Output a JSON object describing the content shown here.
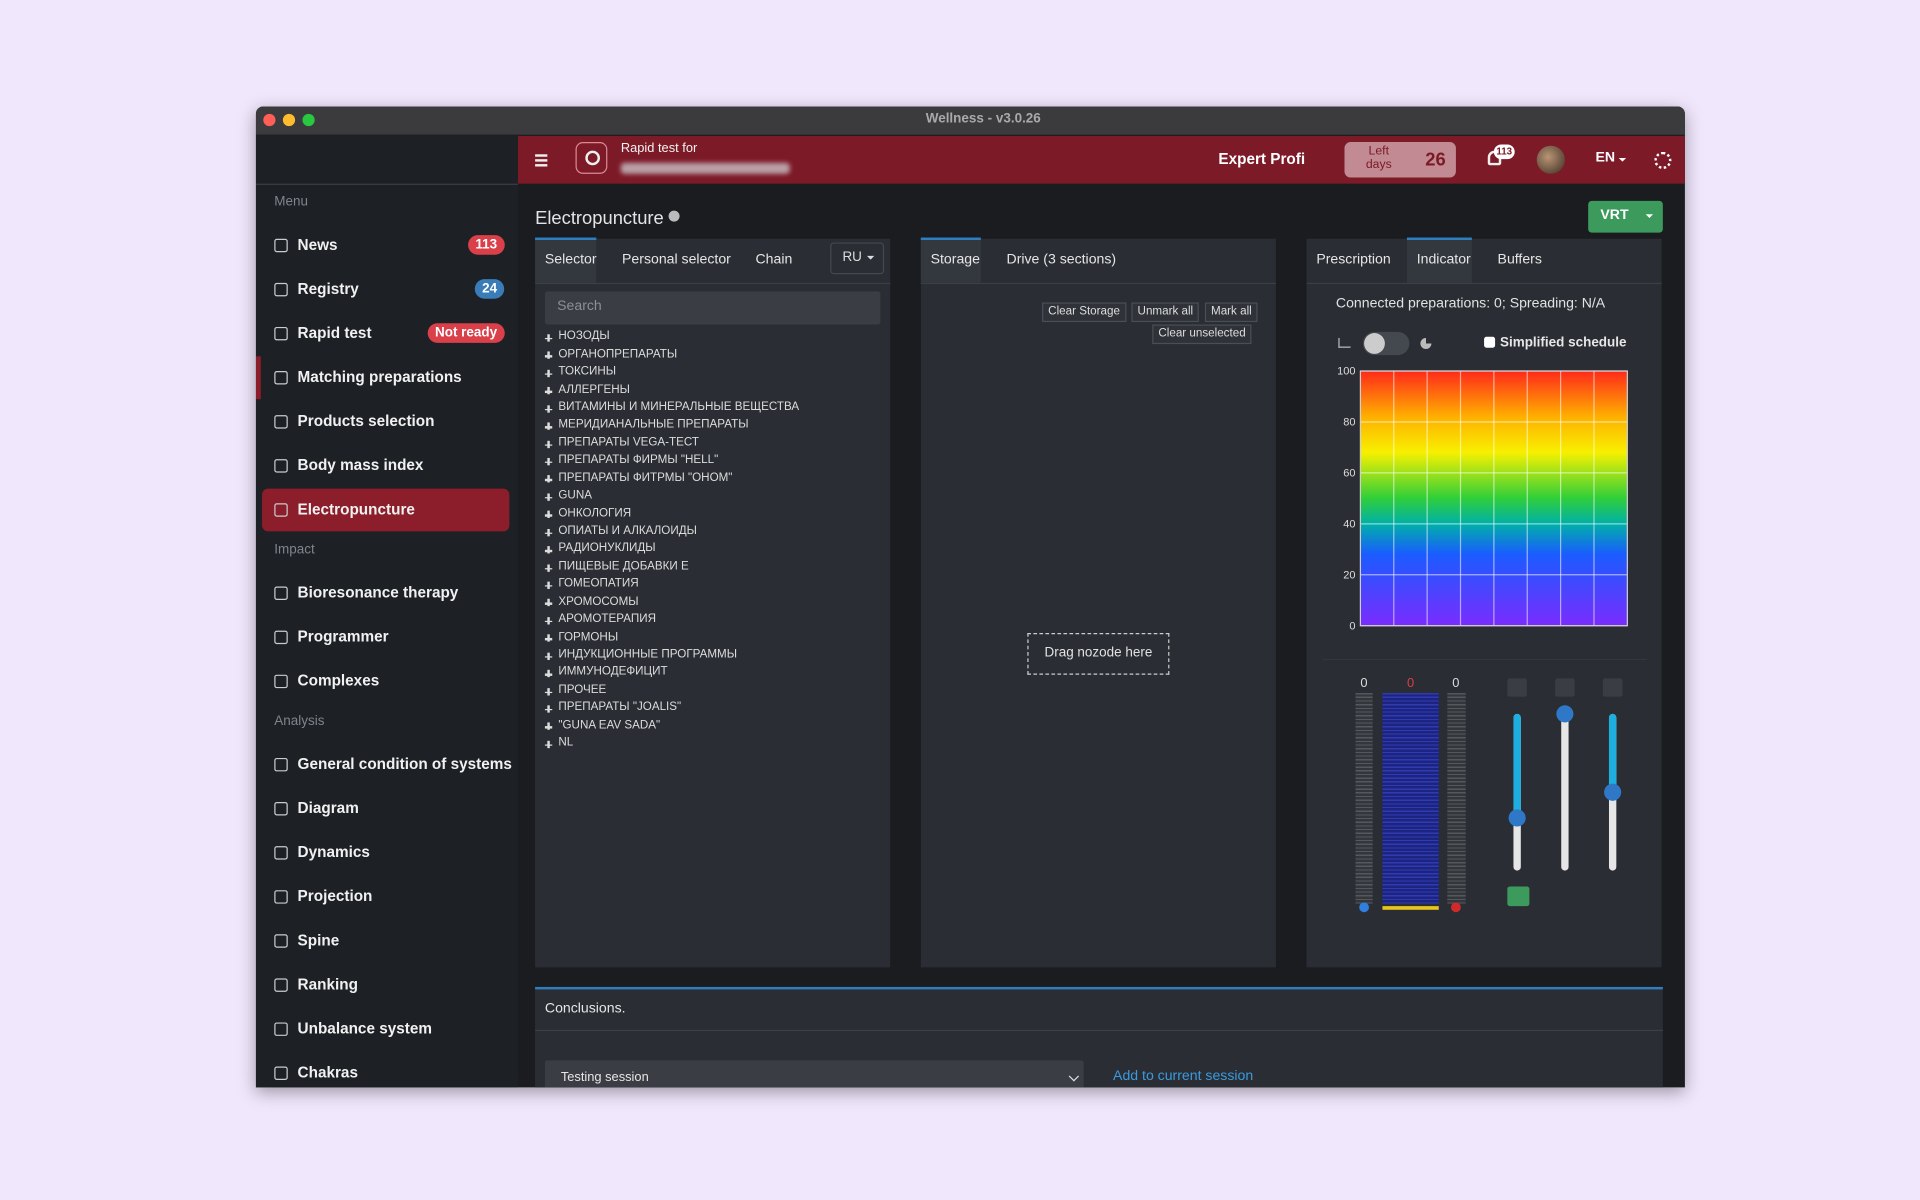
{
  "window": {
    "title": "Wellness - v3.0.26"
  },
  "header": {
    "search_label": "Rapid test for",
    "plan": "Expert Profi",
    "left_days_label": "Left days",
    "left_days": 26,
    "notifications": 113,
    "language": "EN"
  },
  "sidebar": {
    "sections": [
      {
        "title": "Menu",
        "items": [
          {
            "label": "News",
            "badge": 113
          },
          {
            "label": "Registry",
            "badge": 24
          },
          {
            "label": "Rapid test",
            "badge": "Not ready"
          },
          {
            "label": "Matching preparations"
          },
          {
            "label": "Products selection"
          },
          {
            "label": "Body mass index"
          },
          {
            "label": "Electropuncture"
          }
        ]
      },
      {
        "title": "Impact",
        "items": [
          {
            "label": "Bioresonance therapy"
          },
          {
            "label": "Programmer"
          },
          {
            "label": "Complexes"
          }
        ]
      },
      {
        "title": "Analysis",
        "items": [
          {
            "label": "General condition of systems"
          },
          {
            "label": "Diagram"
          },
          {
            "label": "Dynamics"
          },
          {
            "label": "Projection"
          },
          {
            "label": "Spine"
          },
          {
            "label": "Ranking"
          },
          {
            "label": "Unbalance system"
          },
          {
            "label": "Chakras"
          }
        ]
      }
    ]
  },
  "page": {
    "title": "Electropuncture",
    "button": "VRT"
  },
  "selector": {
    "tabs": [
      "Selector",
      "Personal selector",
      "Chain"
    ],
    "language": "RU",
    "search_placeholder": "Search",
    "items": [
      "НОЗОДЫ",
      "ОРГАНОПРЕПАРАТЫ",
      "ТОКСИНЫ",
      "АЛЛЕРГЕНЫ",
      "ВИТАМИНЫ И МИНЕРАЛЬНЫЕ ВЕЩЕСТВА",
      "МЕРИДИАНАЛЬНЫЕ ПРЕПАРАТЫ",
      "ПРЕПАРАТЫ VEGA-ТЕСТ",
      "ПРЕПАРАТЫ ФИРМЫ \"HELL\"",
      "ПРЕПАРАТЫ ФИТРМЫ \"ОНОМ\"",
      "GUNA",
      "ОНКОЛОГИЯ",
      "ОПИАТЫ И АЛКАЛОИДЫ",
      "РАДИОНУКЛИДЫ",
      "ПИЩЕВЫЕ ДОБАВКИ Е",
      "ГОМЕОПАТИЯ",
      "ХРОМОСОМЫ",
      "АРОМОТЕРАПИЯ",
      "ГОРМОНЫ",
      "ИНДУКЦИОННЫЕ ПРОГРАММЫ",
      "ИММУНОДЕФИЦИТ",
      "ПРОЧЕЕ",
      "ПРЕПАРАТЫ \"JOALIS\"",
      "\"GUNA EAV SADA\"",
      "NL"
    ]
  },
  "storage": {
    "tabs": [
      "Storage",
      "Drive (3 sections)"
    ],
    "buttons": [
      "Clear Storage",
      "Unmark all",
      "Mark all",
      "Clear unselected"
    ],
    "drop_hint": "Drag nozode here"
  },
  "indicator": {
    "tabs": [
      "Prescription",
      "Indicator",
      "Buffers"
    ],
    "status": "Connected preparations: 0; Spreading: N/A",
    "simplified": "Simplified schedule",
    "ylim": [
      0,
      100
    ],
    "yticks": [
      0,
      20,
      40,
      60,
      80,
      100
    ],
    "meters": [
      0,
      0,
      0
    ]
  },
  "conclusions": {
    "title": "Conclusions.",
    "session": "Testing session",
    "add": "Add to current session"
  }
}
